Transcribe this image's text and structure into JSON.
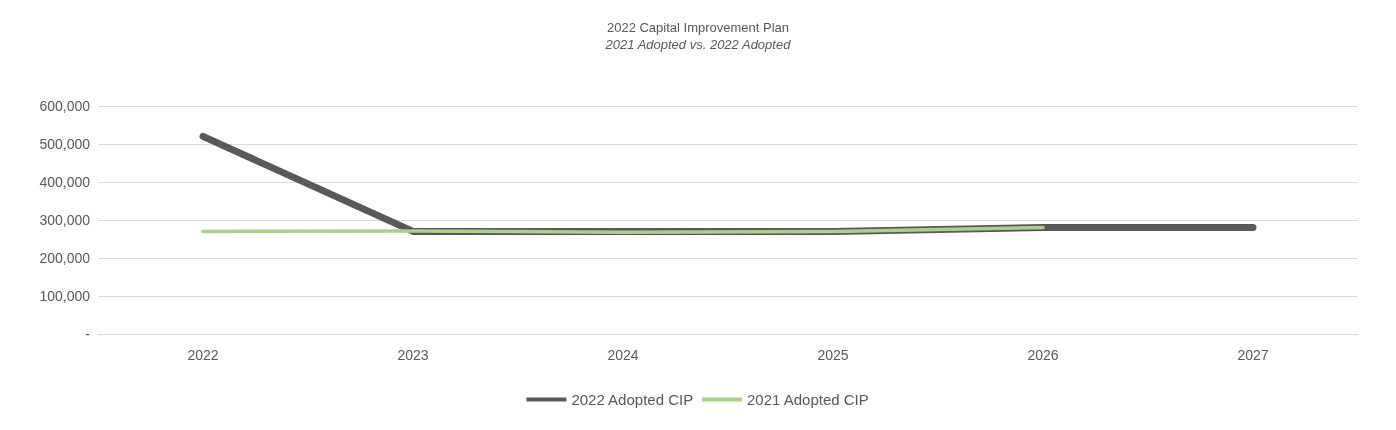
{
  "chart_data": {
    "type": "line",
    "title": "2022 Capital Improvement Plan",
    "subtitle": "2021 Adopted vs. 2022 Adopted",
    "categories": [
      "2022",
      "2023",
      "2024",
      "2025",
      "2026",
      "2027"
    ],
    "series": [
      {
        "name": "2022 Adopted CIP",
        "color": "#595959",
        "values": [
          520000,
          270000,
          270000,
          270000,
          280000,
          280000
        ]
      },
      {
        "name": "2021 Adopted CIP",
        "color": "#a9d18e",
        "values": [
          270000,
          271000,
          268000,
          270000,
          280000,
          null
        ]
      }
    ],
    "ylim": [
      0,
      600000
    ],
    "yticks": [
      {
        "value": 0,
        "label": "-"
      },
      {
        "value": 100000,
        "label": "100,000"
      },
      {
        "value": 200000,
        "label": "200,000"
      },
      {
        "value": 300000,
        "label": "300,000"
      },
      {
        "value": 400000,
        "label": "400,000"
      },
      {
        "value": 500000,
        "label": "500,000"
      },
      {
        "value": 600000,
        "label": "600,000"
      }
    ],
    "grid": "y",
    "legend": "bottom",
    "marker": "none",
    "line_style": "solid"
  }
}
